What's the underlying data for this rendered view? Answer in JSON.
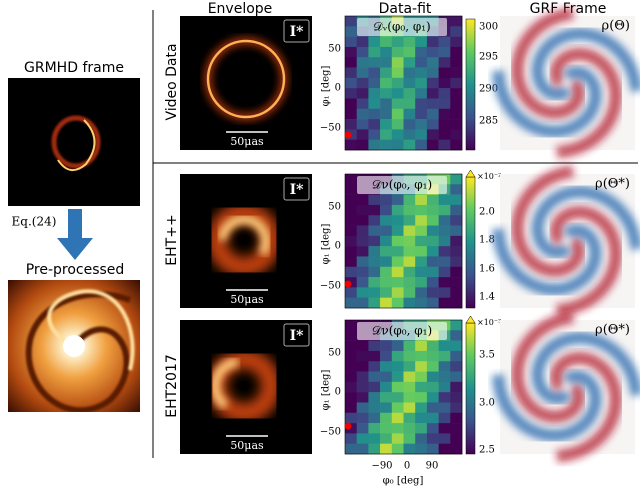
{
  "left": {
    "top_title": "GRMHD frame",
    "arrow_label": "Eq.(24)",
    "bottom_title": "Pre-processed"
  },
  "columns": [
    "Envelope",
    "Data-fit",
    "GRF Frame"
  ],
  "axes": {
    "ylabel": "φ₁ [deg]",
    "yticks": [
      "50",
      "0",
      "−50"
    ],
    "xticks": [
      "−90",
      "0",
      "90"
    ],
    "xlabel": "φ₀ [deg]"
  },
  "rows": [
    {
      "label": "Video Data",
      "envelope_badge": "I*",
      "scale_label": "50μas",
      "fit_title": "𝒟ᵥ(φ₀, φ₁)",
      "colorbar_ticks": [
        "300",
        "295",
        "290",
        "285"
      ],
      "grf_label": "ρ(Θ)"
    },
    {
      "label": "EHT++",
      "envelope_badge": "I*",
      "scale_label": "50μas",
      "fit_title": "𝒟ν(φ₀, φ₁)",
      "colorbar_ticks": [
        "2.0",
        "1.8",
        "1.6",
        "1.4"
      ],
      "colorbar_exponent": "×10⁻²",
      "grf_label": "ρ(Θ*)"
    },
    {
      "label": "EHT2017",
      "envelope_badge": "I*",
      "scale_label": "50μas",
      "fit_title": "𝒟ν(φ₀, φ₁)",
      "colorbar_ticks": [
        "3.5",
        "3.0",
        "2.5"
      ],
      "colorbar_exponent": "×10⁻³",
      "grf_label": "ρ(Θ*)"
    }
  ]
}
